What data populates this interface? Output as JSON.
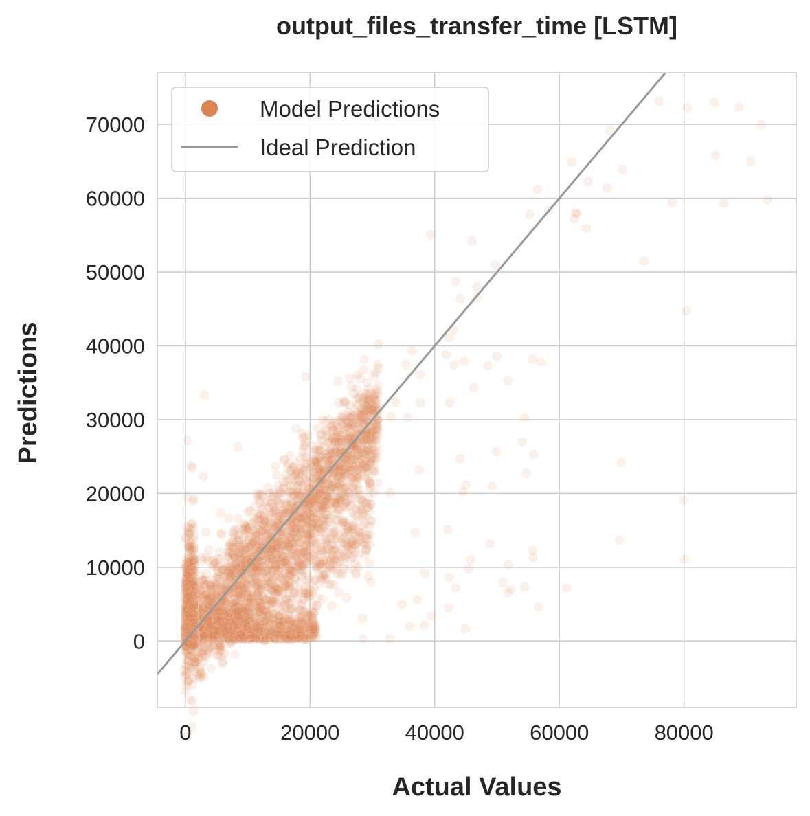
{
  "chart_data": {
    "type": "scatter",
    "title": "output_files_transfer_time [LSTM]",
    "xlabel": "Actual Values",
    "ylabel": "Predictions",
    "xlim": [
      -4500,
      98000
    ],
    "ylim": [
      -9000,
      77000
    ],
    "x_ticks": [
      0,
      20000,
      40000,
      60000,
      80000
    ],
    "y_ticks": [
      0,
      10000,
      20000,
      30000,
      40000,
      50000,
      60000,
      70000
    ],
    "x_tick_labels": [
      "0",
      "20000",
      "40000",
      "60000",
      "80000"
    ],
    "y_tick_labels": [
      "0",
      "10000",
      "20000",
      "30000",
      "40000",
      "50000",
      "60000",
      "70000"
    ],
    "grid": true,
    "legend": {
      "position": "top-left",
      "entries": [
        "Model Predictions",
        "Ideal Prediction"
      ]
    },
    "colors": {
      "points": "#dd8452",
      "ideal_line": "#999999",
      "grid": "#cccccc"
    },
    "series": [
      {
        "name": "Model Predictions",
        "kind": "points",
        "points": [
          [
            76000,
            73200
          ],
          [
            80500,
            72200
          ],
          [
            84800,
            73000
          ],
          [
            88800,
            72300
          ],
          [
            92400,
            70000
          ],
          [
            68100,
            69200
          ],
          [
            85000,
            65800
          ],
          [
            90700,
            65000
          ],
          [
            62000,
            64900
          ],
          [
            70100,
            63900
          ],
          [
            64600,
            62300
          ],
          [
            67600,
            61400
          ],
          [
            62600,
            58000
          ],
          [
            62400,
            57200
          ],
          [
            64300,
            55900
          ],
          [
            58300,
            58400
          ],
          [
            55200,
            57800
          ],
          [
            62800,
            57900
          ],
          [
            78100,
            59400
          ],
          [
            86400,
            59300
          ],
          [
            93400,
            59800
          ],
          [
            56500,
            61200
          ],
          [
            39300,
            55100
          ],
          [
            46000,
            54200
          ],
          [
            49700,
            51000
          ],
          [
            73600,
            51500
          ],
          [
            43300,
            48700
          ],
          [
            46700,
            48000
          ],
          [
            44100,
            46400
          ],
          [
            46700,
            46500
          ],
          [
            80300,
            44700
          ],
          [
            42400,
            41100
          ],
          [
            43000,
            42200
          ],
          [
            31000,
            40200
          ],
          [
            36400,
            39300
          ],
          [
            41800,
            38800
          ],
          [
            43100,
            37400
          ],
          [
            44700,
            37900
          ],
          [
            48500,
            37300
          ],
          [
            50000,
            38600
          ],
          [
            55700,
            38200
          ],
          [
            57000,
            37800
          ],
          [
            35400,
            37500
          ],
          [
            30300,
            35900
          ],
          [
            37600,
            36100
          ],
          [
            51700,
            35300
          ],
          [
            46300,
            34400
          ],
          [
            29000,
            33500
          ],
          [
            27600,
            33000
          ],
          [
            33700,
            32400
          ],
          [
            37700,
            32300
          ],
          [
            42400,
            32300
          ],
          [
            33000,
            30400
          ],
          [
            35700,
            30300
          ],
          [
            54400,
            30200
          ],
          [
            19300,
            35800
          ],
          [
            24500,
            35200
          ],
          [
            3100,
            33300
          ],
          [
            54000,
            27000
          ],
          [
            49900,
            25700
          ],
          [
            55900,
            25300
          ],
          [
            44100,
            24700
          ],
          [
            69900,
            24200
          ],
          [
            54700,
            22700
          ],
          [
            37500,
            23200
          ],
          [
            45000,
            21100
          ],
          [
            49200,
            21000
          ],
          [
            32900,
            20100
          ],
          [
            44500,
            20200
          ],
          [
            79900,
            19100
          ],
          [
            36900,
            14700
          ],
          [
            42100,
            15100
          ],
          [
            48900,
            13200
          ],
          [
            69600,
            13700
          ],
          [
            55700,
            12300
          ],
          [
            80100,
            11100
          ],
          [
            45800,
            11000
          ],
          [
            51800,
            10300
          ],
          [
            55800,
            11300
          ],
          [
            38400,
            9200
          ],
          [
            45400,
            9800
          ],
          [
            51000,
            7900
          ],
          [
            54400,
            7300
          ],
          [
            42300,
            8600
          ],
          [
            43300,
            7200
          ],
          [
            51700,
            6600
          ],
          [
            52200,
            7000
          ],
          [
            61200,
            7200
          ],
          [
            37200,
            5600
          ],
          [
            34800,
            5000
          ],
          [
            42200,
            4500
          ],
          [
            56700,
            4600
          ],
          [
            28400,
            3100
          ],
          [
            39400,
            3400
          ],
          [
            36000,
            2000
          ],
          [
            38300,
            2200
          ],
          [
            44900,
            1700
          ],
          [
            28500,
            300
          ],
          [
            32800,
            300
          ],
          [
            8400,
            26300
          ],
          [
            2900,
            22300
          ],
          [
            1100,
            23500
          ],
          [
            300,
            27200
          ],
          [
            22000,
            30000
          ],
          [
            25300,
            30700
          ],
          [
            -200,
            -4000
          ],
          [
            -100,
            -4800
          ],
          [
            300,
            -4200
          ],
          [
            900,
            -2000
          ],
          [
            2500,
            0
          ]
        ]
      },
      {
        "name": "Ideal Prediction",
        "kind": "line",
        "points": [
          [
            -4500,
            -4500
          ],
          [
            98000,
            98000
          ]
        ]
      }
    ]
  }
}
